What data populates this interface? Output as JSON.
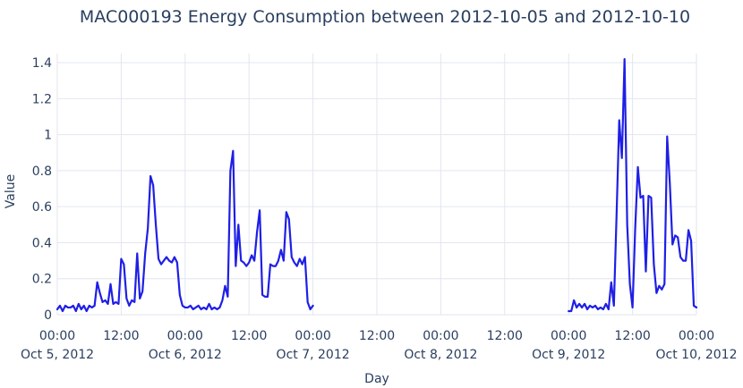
{
  "chart_data": {
    "type": "line",
    "title": "MAC000193 Energy Consumption between 2012-10-05 and 2012-10-10",
    "xlabel": "Day",
    "ylabel": "Value",
    "ylim": [
      0,
      1.45
    ],
    "xlim": [
      "2012-10-05 00:00",
      "2012-10-10 00:00"
    ],
    "yticks": [
      0,
      0.2,
      0.4,
      0.6,
      0.8,
      1,
      1.2,
      1.4
    ],
    "ytick_labels": [
      "0",
      "0.2",
      "0.4",
      "0.6",
      "0.8",
      "1",
      "1.2",
      "1.4"
    ],
    "xticks": [
      {
        "time": "2012-10-05 00:00",
        "label": "00:00",
        "date": "Oct 5, 2012"
      },
      {
        "time": "2012-10-05 12:00",
        "label": "12:00",
        "date": ""
      },
      {
        "time": "2012-10-06 00:00",
        "label": "00:00",
        "date": "Oct 6, 2012"
      },
      {
        "time": "2012-10-06 12:00",
        "label": "12:00",
        "date": ""
      },
      {
        "time": "2012-10-07 00:00",
        "label": "00:00",
        "date": "Oct 7, 2012"
      },
      {
        "time": "2012-10-07 12:00",
        "label": "12:00",
        "date": ""
      },
      {
        "time": "2012-10-08 00:00",
        "label": "00:00",
        "date": "Oct 8, 2012"
      },
      {
        "time": "2012-10-08 12:00",
        "label": "12:00",
        "date": ""
      },
      {
        "time": "2012-10-09 00:00",
        "label": "00:00",
        "date": "Oct 9, 2012"
      },
      {
        "time": "2012-10-09 12:00",
        "label": "12:00",
        "date": ""
      },
      {
        "time": "2012-10-10 00:00",
        "label": "00:00",
        "date": "Oct 10, 2012"
      }
    ],
    "grid": true,
    "legend": "none",
    "line_color": "#1f1fe6",
    "series": [
      {
        "segments": [
          [
            [
              "2012-10-05 00:00",
              0.03
            ],
            [
              "2012-10-05 00:30",
              0.05
            ],
            [
              "2012-10-05 01:00",
              0.02
            ],
            [
              "2012-10-05 01:30",
              0.05
            ],
            [
              "2012-10-05 02:00",
              0.04
            ],
            [
              "2012-10-05 02:30",
              0.04
            ],
            [
              "2012-10-05 03:00",
              0.05
            ],
            [
              "2012-10-05 03:30",
              0.02
            ],
            [
              "2012-10-05 04:00",
              0.06
            ],
            [
              "2012-10-05 04:30",
              0.03
            ],
            [
              "2012-10-05 05:00",
              0.05
            ],
            [
              "2012-10-05 05:30",
              0.02
            ],
            [
              "2012-10-05 06:00",
              0.05
            ],
            [
              "2012-10-05 06:30",
              0.04
            ],
            [
              "2012-10-05 07:00",
              0.05
            ],
            [
              "2012-10-05 07:30",
              0.18
            ],
            [
              "2012-10-05 08:00",
              0.12
            ],
            [
              "2012-10-05 08:30",
              0.07
            ],
            [
              "2012-10-05 09:00",
              0.08
            ],
            [
              "2012-10-05 09:30",
              0.06
            ],
            [
              "2012-10-05 10:00",
              0.17
            ],
            [
              "2012-10-05 10:30",
              0.06
            ],
            [
              "2012-10-05 11:00",
              0.07
            ],
            [
              "2012-10-05 11:30",
              0.06
            ],
            [
              "2012-10-05 12:00",
              0.31
            ],
            [
              "2012-10-05 12:30",
              0.28
            ],
            [
              "2012-10-05 13:00",
              0.09
            ],
            [
              "2012-10-05 13:30",
              0.05
            ],
            [
              "2012-10-05 14:00",
              0.08
            ],
            [
              "2012-10-05 14:30",
              0.07
            ],
            [
              "2012-10-05 15:00",
              0.34
            ],
            [
              "2012-10-05 15:30",
              0.09
            ],
            [
              "2012-10-05 16:00",
              0.13
            ],
            [
              "2012-10-05 16:30",
              0.34
            ],
            [
              "2012-10-05 17:00",
              0.48
            ],
            [
              "2012-10-05 17:30",
              0.77
            ],
            [
              "2012-10-05 18:00",
              0.72
            ],
            [
              "2012-10-05 18:30",
              0.5
            ],
            [
              "2012-10-05 19:00",
              0.31
            ],
            [
              "2012-10-05 19:30",
              0.28
            ],
            [
              "2012-10-05 20:00",
              0.3
            ],
            [
              "2012-10-05 20:30",
              0.32
            ],
            [
              "2012-10-05 21:00",
              0.3
            ],
            [
              "2012-10-05 21:30",
              0.29
            ],
            [
              "2012-10-05 22:00",
              0.32
            ],
            [
              "2012-10-05 22:30",
              0.29
            ],
            [
              "2012-10-05 23:00",
              0.11
            ],
            [
              "2012-10-05 23:30",
              0.05
            ],
            [
              "2012-10-06 00:00",
              0.04
            ],
            [
              "2012-10-06 00:30",
              0.04
            ],
            [
              "2012-10-06 01:00",
              0.05
            ],
            [
              "2012-10-06 01:30",
              0.03
            ],
            [
              "2012-10-06 02:00",
              0.04
            ],
            [
              "2012-10-06 02:30",
              0.05
            ],
            [
              "2012-10-06 03:00",
              0.03
            ],
            [
              "2012-10-06 03:30",
              0.04
            ],
            [
              "2012-10-06 04:00",
              0.03
            ],
            [
              "2012-10-06 04:30",
              0.06
            ],
            [
              "2012-10-06 05:00",
              0.03
            ],
            [
              "2012-10-06 05:30",
              0.04
            ],
            [
              "2012-10-06 06:00",
              0.03
            ],
            [
              "2012-10-06 06:30",
              0.04
            ],
            [
              "2012-10-06 07:00",
              0.08
            ],
            [
              "2012-10-06 07:30",
              0.16
            ],
            [
              "2012-10-06 08:00",
              0.1
            ],
            [
              "2012-10-06 08:30",
              0.8
            ],
            [
              "2012-10-06 09:00",
              0.91
            ],
            [
              "2012-10-06 09:30",
              0.27
            ],
            [
              "2012-10-06 10:00",
              0.5
            ],
            [
              "2012-10-06 10:30",
              0.3
            ],
            [
              "2012-10-06 11:00",
              0.29
            ],
            [
              "2012-10-06 11:30",
              0.27
            ],
            [
              "2012-10-06 12:00",
              0.29
            ],
            [
              "2012-10-06 12:30",
              0.33
            ],
            [
              "2012-10-06 13:00",
              0.3
            ],
            [
              "2012-10-06 13:30",
              0.46
            ],
            [
              "2012-10-06 14:00",
              0.58
            ],
            [
              "2012-10-06 14:30",
              0.11
            ],
            [
              "2012-10-06 15:00",
              0.1
            ],
            [
              "2012-10-06 15:30",
              0.1
            ],
            [
              "2012-10-06 16:00",
              0.28
            ],
            [
              "2012-10-06 16:30",
              0.27
            ],
            [
              "2012-10-06 17:00",
              0.27
            ],
            [
              "2012-10-06 17:30",
              0.3
            ],
            [
              "2012-10-06 18:00",
              0.36
            ],
            [
              "2012-10-06 18:30",
              0.3
            ],
            [
              "2012-10-06 19:00",
              0.57
            ],
            [
              "2012-10-06 19:30",
              0.53
            ],
            [
              "2012-10-06 20:00",
              0.32
            ],
            [
              "2012-10-06 20:30",
              0.29
            ],
            [
              "2012-10-06 21:00",
              0.27
            ],
            [
              "2012-10-06 21:30",
              0.31
            ],
            [
              "2012-10-06 22:00",
              0.28
            ],
            [
              "2012-10-06 22:30",
              0.32
            ],
            [
              "2012-10-06 23:00",
              0.07
            ],
            [
              "2012-10-06 23:30",
              0.03
            ],
            [
              "2012-10-07 00:00",
              0.05
            ]
          ],
          [
            [
              "2012-10-09 00:00",
              0.02
            ],
            [
              "2012-10-09 00:30",
              0.02
            ],
            [
              "2012-10-09 01:00",
              0.08
            ],
            [
              "2012-10-09 01:30",
              0.04
            ],
            [
              "2012-10-09 02:00",
              0.06
            ],
            [
              "2012-10-09 02:30",
              0.04
            ],
            [
              "2012-10-09 03:00",
              0.06
            ],
            [
              "2012-10-09 03:30",
              0.03
            ],
            [
              "2012-10-09 04:00",
              0.05
            ],
            [
              "2012-10-09 04:30",
              0.04
            ],
            [
              "2012-10-09 05:00",
              0.05
            ],
            [
              "2012-10-09 05:30",
              0.03
            ],
            [
              "2012-10-09 06:00",
              0.04
            ],
            [
              "2012-10-09 06:30",
              0.03
            ],
            [
              "2012-10-09 07:00",
              0.06
            ],
            [
              "2012-10-09 07:30",
              0.03
            ],
            [
              "2012-10-09 08:00",
              0.18
            ],
            [
              "2012-10-09 08:30",
              0.05
            ],
            [
              "2012-10-09 09:00",
              0.55
            ],
            [
              "2012-10-09 09:30",
              1.08
            ],
            [
              "2012-10-09 10:00",
              0.87
            ],
            [
              "2012-10-09 10:30",
              1.42
            ],
            [
              "2012-10-09 11:00",
              0.5
            ],
            [
              "2012-10-09 11:30",
              0.17
            ],
            [
              "2012-10-09 12:00",
              0.04
            ],
            [
              "2012-10-09 12:30",
              0.48
            ],
            [
              "2012-10-09 13:00",
              0.82
            ],
            [
              "2012-10-09 13:30",
              0.65
            ],
            [
              "2012-10-09 14:00",
              0.66
            ],
            [
              "2012-10-09 14:30",
              0.24
            ],
            [
              "2012-10-09 15:00",
              0.66
            ],
            [
              "2012-10-09 15:30",
              0.65
            ],
            [
              "2012-10-09 16:00",
              0.28
            ],
            [
              "2012-10-09 16:30",
              0.12
            ],
            [
              "2012-10-09 17:00",
              0.16
            ],
            [
              "2012-10-09 17:30",
              0.14
            ],
            [
              "2012-10-09 18:00",
              0.17
            ],
            [
              "2012-10-09 18:30",
              0.99
            ],
            [
              "2012-10-09 19:00",
              0.73
            ],
            [
              "2012-10-09 19:30",
              0.39
            ],
            [
              "2012-10-09 20:00",
              0.44
            ],
            [
              "2012-10-09 20:30",
              0.43
            ],
            [
              "2012-10-09 21:00",
              0.32
            ],
            [
              "2012-10-09 21:30",
              0.3
            ],
            [
              "2012-10-09 22:00",
              0.3
            ],
            [
              "2012-10-09 22:30",
              0.47
            ],
            [
              "2012-10-09 23:00",
              0.41
            ],
            [
              "2012-10-09 23:30",
              0.05
            ],
            [
              "2012-10-10 00:00",
              0.04
            ]
          ]
        ]
      }
    ]
  }
}
